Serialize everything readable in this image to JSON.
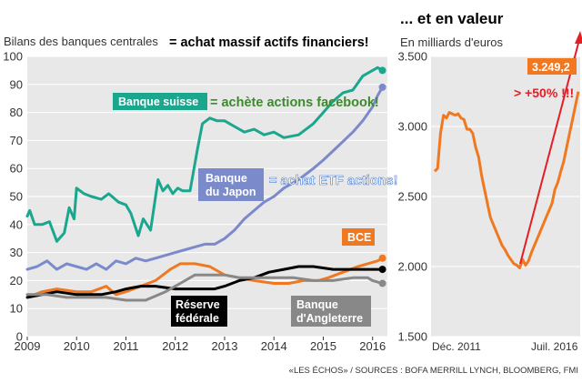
{
  "left_title": "Bilans des banques centrales",
  "left_comment": "= achat massif actifs financiers!",
  "right_title": "... et en valeur",
  "right_subtitle": "En milliards d'euros",
  "source": "«LES ÉCHOS» / SOURCES : BOFA MERRILL LYNCH, BLOOMBERG, FMI",
  "colors": {
    "background_panel": "#e8e8e8",
    "swiss": "#1aa78e",
    "japan": "#7a8acb",
    "ecb": "#f07820",
    "fed": "#000000",
    "boe": "#888888",
    "annotation_red": "#e31e24",
    "annotation_green": "#3d8a2e",
    "annotation_blue": "#4a7fd4"
  },
  "chart_data": [
    {
      "type": "line",
      "title": "Bilans des banques centrales",
      "ylim": [
        0,
        100
      ],
      "yticks": [
        "0",
        "10",
        "20",
        "30",
        "40",
        "50",
        "60",
        "70",
        "80",
        "90",
        "100"
      ],
      "xlim": [
        2009,
        2016.3
      ],
      "xticks": [
        "2009",
        "2010",
        "2011",
        "2012",
        "2013",
        "2014",
        "2015",
        "2016"
      ],
      "grid": true,
      "series": [
        {
          "name": "Banque suisse",
          "key": "swiss",
          "points": [
            [
              2009,
              43
            ],
            [
              2009.05,
              45
            ],
            [
              2009.15,
              40
            ],
            [
              2009.3,
              40
            ],
            [
              2009.45,
              41
            ],
            [
              2009.6,
              34
            ],
            [
              2009.75,
              37
            ],
            [
              2009.85,
              46
            ],
            [
              2009.95,
              42
            ],
            [
              2010.0,
              53
            ],
            [
              2010.15,
              51
            ],
            [
              2010.3,
              50
            ],
            [
              2010.5,
              49
            ],
            [
              2010.65,
              51
            ],
            [
              2010.85,
              48
            ],
            [
              2011.0,
              47
            ],
            [
              2011.1,
              44
            ],
            [
              2011.25,
              36
            ],
            [
              2011.35,
              42
            ],
            [
              2011.5,
              38
            ],
            [
              2011.65,
              56
            ],
            [
              2011.75,
              52
            ],
            [
              2011.85,
              54
            ],
            [
              2011.95,
              51
            ],
            [
              2012.05,
              53
            ],
            [
              2012.15,
              52
            ],
            [
              2012.3,
              52
            ],
            [
              2012.45,
              67
            ],
            [
              2012.55,
              76
            ],
            [
              2012.7,
              78
            ],
            [
              2012.85,
              77
            ],
            [
              2013.0,
              77
            ],
            [
              2013.2,
              75
            ],
            [
              2013.4,
              73
            ],
            [
              2013.6,
              74
            ],
            [
              2013.8,
              72
            ],
            [
              2014.0,
              73
            ],
            [
              2014.2,
              71
            ],
            [
              2014.5,
              72
            ],
            [
              2014.8,
              76
            ],
            [
              2015.0,
              80
            ],
            [
              2015.2,
              84
            ],
            [
              2015.4,
              87
            ],
            [
              2015.6,
              88
            ],
            [
              2015.8,
              93
            ],
            [
              2016.0,
              95
            ],
            [
              2016.1,
              96
            ],
            [
              2016.2,
              95
            ]
          ]
        },
        {
          "name": "Banque du Japon",
          "key": "japan",
          "points": [
            [
              2009,
              24
            ],
            [
              2009.2,
              25
            ],
            [
              2009.4,
              27
            ],
            [
              2009.6,
              24
            ],
            [
              2009.8,
              26
            ],
            [
              2010.0,
              25
            ],
            [
              2010.2,
              24
            ],
            [
              2010.4,
              26
            ],
            [
              2010.6,
              24
            ],
            [
              2010.8,
              27
            ],
            [
              2011.0,
              26
            ],
            [
              2011.2,
              28
            ],
            [
              2011.4,
              27
            ],
            [
              2011.6,
              28
            ],
            [
              2011.8,
              29
            ],
            [
              2012.0,
              30
            ],
            [
              2012.2,
              31
            ],
            [
              2012.4,
              32
            ],
            [
              2012.6,
              33
            ],
            [
              2012.8,
              33
            ],
            [
              2013.0,
              35
            ],
            [
              2013.2,
              38
            ],
            [
              2013.4,
              42
            ],
            [
              2013.6,
              45
            ],
            [
              2013.8,
              48
            ],
            [
              2014.0,
              50
            ],
            [
              2014.2,
              53
            ],
            [
              2014.5,
              56
            ],
            [
              2014.8,
              60
            ],
            [
              2015.0,
              63
            ],
            [
              2015.3,
              68
            ],
            [
              2015.6,
              73
            ],
            [
              2015.8,
              77
            ],
            [
              2016.0,
              82
            ],
            [
              2016.1,
              86
            ],
            [
              2016.2,
              89
            ]
          ]
        },
        {
          "name": "BCE",
          "key": "ecb",
          "points": [
            [
              2009,
              14
            ],
            [
              2009.3,
              16
            ],
            [
              2009.6,
              17
            ],
            [
              2010.0,
              16
            ],
            [
              2010.3,
              16
            ],
            [
              2010.6,
              18
            ],
            [
              2010.8,
              15
            ],
            [
              2011.0,
              16
            ],
            [
              2011.3,
              18
            ],
            [
              2011.6,
              20
            ],
            [
              2011.9,
              24
            ],
            [
              2012.1,
              26
            ],
            [
              2012.4,
              26
            ],
            [
              2012.7,
              25
            ],
            [
              2013.0,
              22
            ],
            [
              2013.3,
              21
            ],
            [
              2013.6,
              20
            ],
            [
              2014.0,
              19
            ],
            [
              2014.3,
              19
            ],
            [
              2014.6,
              20
            ],
            [
              2014.9,
              20
            ],
            [
              2015.1,
              21
            ],
            [
              2015.4,
              23
            ],
            [
              2015.7,
              25
            ],
            [
              2015.9,
              26
            ],
            [
              2016.1,
              27
            ],
            [
              2016.2,
              28
            ]
          ]
        },
        {
          "name": "Réserve fédérale",
          "key": "fed",
          "points": [
            [
              2009,
              14
            ],
            [
              2009.3,
              15
            ],
            [
              2009.6,
              16
            ],
            [
              2010.0,
              15
            ],
            [
              2010.5,
              15
            ],
            [
              2010.8,
              16
            ],
            [
              2011.0,
              17
            ],
            [
              2011.3,
              18
            ],
            [
              2011.6,
              18
            ],
            [
              2012.0,
              17
            ],
            [
              2012.4,
              17
            ],
            [
              2012.8,
              17
            ],
            [
              2013.0,
              18
            ],
            [
              2013.3,
              20
            ],
            [
              2013.6,
              21
            ],
            [
              2013.9,
              23
            ],
            [
              2014.2,
              24
            ],
            [
              2014.5,
              25
            ],
            [
              2014.8,
              25
            ],
            [
              2015.2,
              24
            ],
            [
              2015.6,
              24
            ],
            [
              2016.0,
              24
            ],
            [
              2016.2,
              24
            ]
          ]
        },
        {
          "name": "Banque d'Angleterre",
          "key": "boe",
          "points": [
            [
              2009,
              15
            ],
            [
              2009.4,
              15
            ],
            [
              2009.8,
              14
            ],
            [
              2010.2,
              14
            ],
            [
              2010.6,
              14
            ],
            [
              2011.0,
              13
            ],
            [
              2011.4,
              13
            ],
            [
              2011.8,
              16
            ],
            [
              2012.1,
              19
            ],
            [
              2012.4,
              22
            ],
            [
              2012.7,
              22
            ],
            [
              2013.0,
              22
            ],
            [
              2013.3,
              21
            ],
            [
              2013.6,
              21
            ],
            [
              2014.0,
              21
            ],
            [
              2014.4,
              21
            ],
            [
              2014.8,
              20
            ],
            [
              2015.2,
              20
            ],
            [
              2015.6,
              21
            ],
            [
              2015.9,
              21
            ],
            [
              2016.0,
              20
            ],
            [
              2016.2,
              19
            ]
          ]
        }
      ],
      "labels": {
        "swiss": "Banque suisse",
        "japan_line1": "Banque",
        "japan_line2": "du Japon",
        "ecb": "BCE",
        "fed_line1": "Réserve",
        "fed_line2": "fédérale",
        "boe_line1": "Banque",
        "boe_line2": "d'Angleterre"
      },
      "annotations": {
        "swiss": "= achète actions facebook!",
        "japan": "= achat ETF actions!"
      }
    },
    {
      "type": "line",
      "title": "... et en valeur",
      "ylabel": "En milliards d'euros",
      "ylim": [
        1500,
        3500
      ],
      "yticks": [
        "1.500",
        "2.000",
        "2.500",
        "3.000",
        "3.500"
      ],
      "xticks": [
        "Déc. 2011",
        "Juil. 2016"
      ],
      "grid": true,
      "series": [
        {
          "name": "BCE",
          "key": "ecb",
          "values": [
            2680,
            2700,
            2950,
            3080,
            3060,
            3100,
            3090,
            3080,
            3090,
            3060,
            3050,
            2980,
            2980,
            2950,
            2850,
            2780,
            2650,
            2550,
            2450,
            2350,
            2300,
            2250,
            2200,
            2150,
            2120,
            2080,
            2050,
            2020,
            2010,
            1990,
            2050,
            2010,
            2040,
            2100,
            2150,
            2200,
            2250,
            2300,
            2350,
            2400,
            2450,
            2550,
            2600,
            2680,
            2750,
            2850,
            2950,
            3050,
            3150,
            3249
          ]
        }
      ],
      "value_label": "3.249,2",
      "annotation": "> +50% !!!"
    }
  ]
}
